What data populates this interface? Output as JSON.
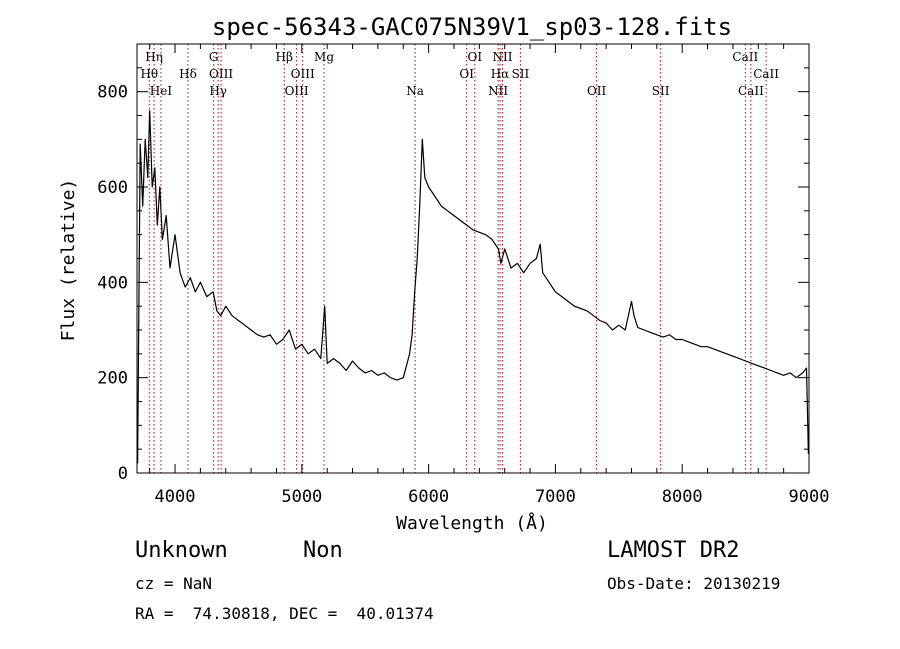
{
  "chart_data": {
    "type": "line",
    "title": "spec-56343-GAC075N39V1_sp03-128.fits",
    "xlabel": "Wavelength (Å)",
    "ylabel": "Flux (relative)",
    "xlim": [
      3700,
      9000
    ],
    "ylim": [
      0,
      900
    ],
    "xticks": [
      4000,
      5000,
      6000,
      7000,
      8000,
      9000
    ],
    "yticks": [
      0,
      200,
      400,
      600,
      800
    ],
    "xtick_labels": [
      "4000",
      "5000",
      "6000",
      "7000",
      "8000",
      "9000"
    ],
    "ytick_labels": [
      "0",
      "200",
      "400",
      "600",
      "800"
    ],
    "grid": false,
    "series": [
      {
        "x": [
          3705,
          3725,
          3745,
          3765,
          3785,
          3800,
          3820,
          3840,
          3860,
          3880,
          3900,
          3930,
          3960,
          4000,
          4040,
          4080,
          4120,
          4160,
          4200,
          4250,
          4300,
          4330,
          4360,
          4400,
          4450,
          4500,
          4550,
          4600,
          4650,
          4700,
          4750,
          4800,
          4850,
          4900,
          4950,
          5000,
          5050,
          5100,
          5150,
          5180,
          5200,
          5250,
          5300,
          5350,
          5400,
          5450,
          5500,
          5550,
          5600,
          5650,
          5700,
          5750,
          5800,
          5830,
          5850,
          5870,
          5890,
          5910,
          5930,
          5950,
          5970,
          6000,
          6050,
          6100,
          6150,
          6200,
          6250,
          6300,
          6350,
          6400,
          6450,
          6500,
          6550,
          6570,
          6600,
          6650,
          6700,
          6750,
          6800,
          6850,
          6880,
          6900,
          6950,
          7000,
          7050,
          7100,
          7150,
          7200,
          7250,
          7300,
          7350,
          7400,
          7450,
          7500,
          7550,
          7600,
          7620,
          7650,
          7700,
          7750,
          7800,
          7850,
          7900,
          7950,
          8000,
          8050,
          8100,
          8150,
          8200,
          8250,
          8300,
          8350,
          8400,
          8450,
          8500,
          8550,
          8600,
          8650,
          8700,
          8750,
          8800,
          8850,
          8900,
          8950,
          8980,
          8995
        ],
        "y": [
          20,
          690,
          560,
          700,
          620,
          760,
          600,
          640,
          520,
          600,
          490,
          540,
          430,
          500,
          420,
          390,
          410,
          380,
          400,
          370,
          380,
          340,
          330,
          350,
          330,
          320,
          310,
          300,
          290,
          285,
          290,
          270,
          280,
          300,
          260,
          270,
          250,
          260,
          240,
          350,
          230,
          240,
          230,
          215,
          235,
          220,
          210,
          215,
          205,
          210,
          200,
          195,
          200,
          230,
          250,
          290,
          380,
          450,
          560,
          700,
          620,
          600,
          580,
          560,
          550,
          540,
          530,
          520,
          510,
          505,
          500,
          490,
          470,
          440,
          470,
          430,
          440,
          420,
          440,
          450,
          480,
          420,
          400,
          380,
          370,
          360,
          350,
          345,
          340,
          330,
          320,
          315,
          300,
          310,
          300,
          360,
          330,
          305,
          300,
          295,
          290,
          285,
          290,
          280,
          280,
          275,
          270,
          265,
          265,
          260,
          255,
          250,
          245,
          240,
          235,
          230,
          225,
          220,
          215,
          210,
          205,
          210,
          200,
          210,
          220,
          40
        ]
      }
    ],
    "line_markers": [
      {
        "label": "Hη",
        "x": 3835,
        "row": 0
      },
      {
        "label": "Hθ",
        "x": 3797,
        "row": 1
      },
      {
        "label": "HeI",
        "x": 3889,
        "row": 2
      },
      {
        "label": "Hδ",
        "x": 4102,
        "row": 1
      },
      {
        "label": "G",
        "x": 4305,
        "row": 0
      },
      {
        "label": "OIII",
        "x": 4363,
        "row": 1
      },
      {
        "label": "Hγ",
        "x": 4340,
        "row": 2
      },
      {
        "label": "Hβ",
        "x": 4861,
        "row": 0
      },
      {
        "label": "OIII",
        "x": 5007,
        "row": 1
      },
      {
        "label": "OIII",
        "x": 4959,
        "row": 2
      },
      {
        "label": "Mg",
        "x": 5175,
        "row": 0
      },
      {
        "label": "Na",
        "x": 5893,
        "row": 2
      },
      {
        "label": "OI",
        "x": 6364,
        "row": 0
      },
      {
        "label": "OI",
        "x": 6300,
        "row": 1
      },
      {
        "label": "NII",
        "x": 6583,
        "row": 0
      },
      {
        "label": "Hα",
        "x": 6563,
        "row": 1
      },
      {
        "label": "SII",
        "x": 6724,
        "row": 1
      },
      {
        "label": "NII",
        "x": 6548,
        "row": 2
      },
      {
        "label": "OII",
        "x": 7325,
        "row": 2
      },
      {
        "label": "SII",
        "x": 7830,
        "row": 2
      },
      {
        "label": "CaII",
        "x": 8498,
        "row": 0
      },
      {
        "label": "CaII",
        "x": 8662,
        "row": 1
      },
      {
        "label": "CaII",
        "x": 8542,
        "row": 2
      }
    ]
  },
  "info": {
    "class": "Unknown",
    "subclass": "Non",
    "survey": "LAMOST DR2",
    "cz": "cz = NaN",
    "obs_date": "Obs-Date: 20130219",
    "coords": "RA =  74.30818, DEC =  40.01374"
  }
}
